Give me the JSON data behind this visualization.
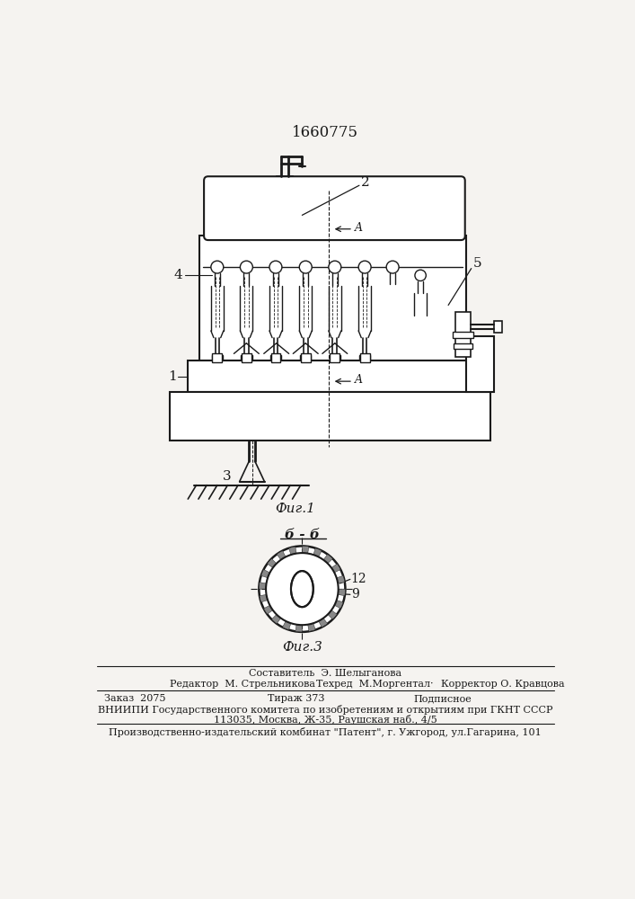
{
  "patent_number": "1660775",
  "fig1_label": "Фиг.1",
  "fig3_label": "Фиг.3",
  "section_label": "б - б",
  "label_1": "1",
  "label_2": "2",
  "label_3": "3",
  "label_4": "4",
  "label_5": "5",
  "label_9": "9",
  "label_12": "12",
  "footer_line1": "Составитель  Э. Шелыганова",
  "footer_line2a": "Редактор  М. Стрельникова",
  "footer_line2b": "Техред  М.Моргентал·",
  "footer_line2c": "Корректор О. Кравцова",
  "footer_line3a": "Заказ  2075",
  "footer_line3b": "Тираж 373",
  "footer_line3c": "Подписное",
  "footer_line4": "ВНИИПИ Государственного комитета по изобретениям и открытиям при ГКНТ СССР",
  "footer_line5": "113035, Москва, Ж-35, Раушская наб., 4/5",
  "footer_line6": "Производственно-издательский комбинат \"Патент\", г. Ужгород, ул.Гагарина, 101",
  "bg_color": "#f5f3f0",
  "line_color": "#1a1a1a"
}
